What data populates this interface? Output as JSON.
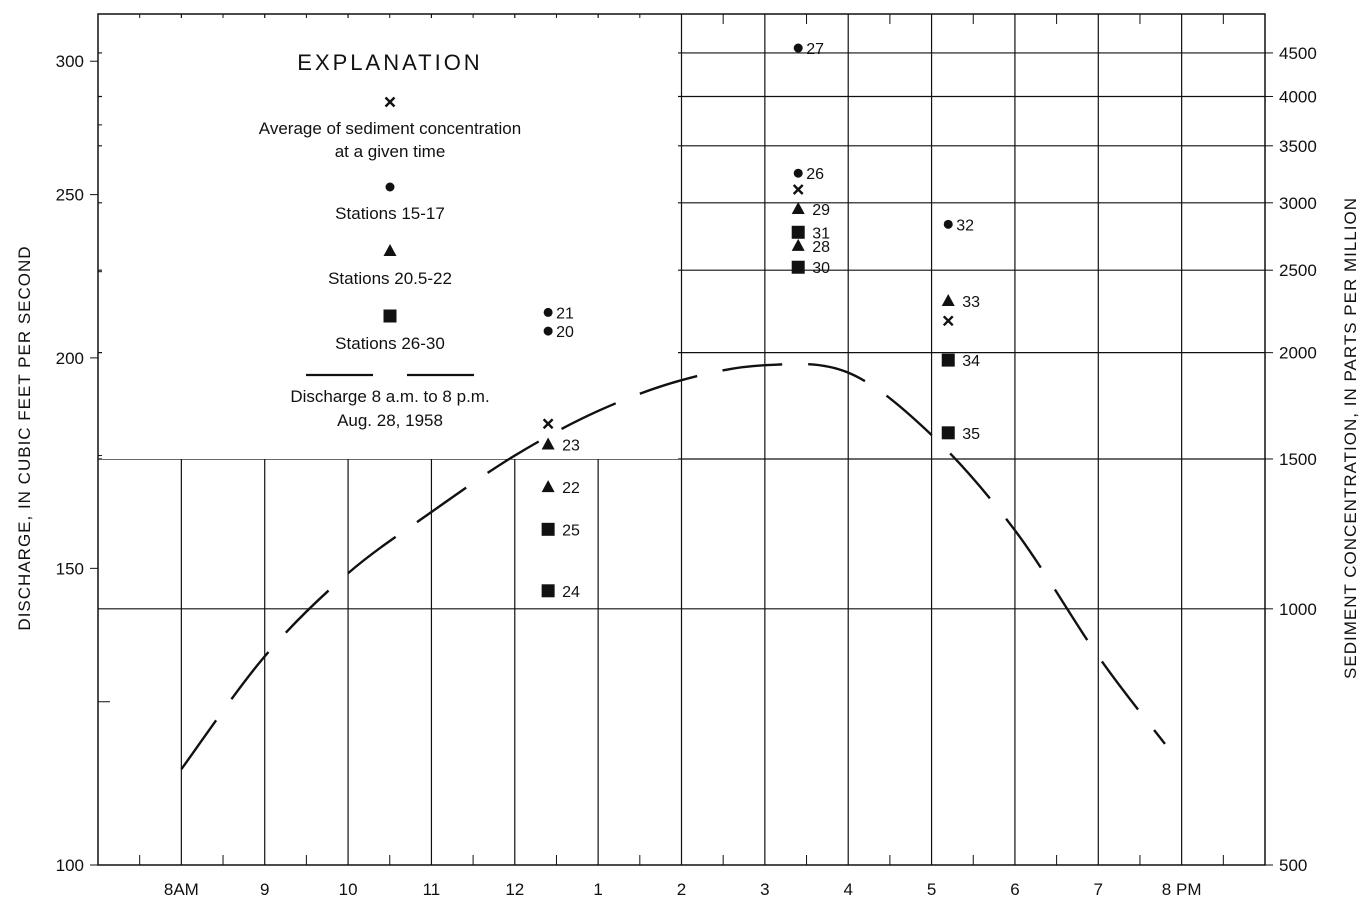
{
  "chart_data": {
    "type": "scatter",
    "title": "",
    "xlabel": "",
    "ylabel_left": "DISCHARGE, IN CUBIC FEET PER SECOND",
    "ylabel_right": "SEDIMENT CONCENTRATION, IN PARTS PER MILLION",
    "x_tick_labels": [
      "8AM",
      "9",
      "10",
      "11",
      "12",
      "1",
      "2",
      "3",
      "4",
      "5",
      "6",
      "7",
      "8 PM"
    ],
    "x_tick_hours": [
      8,
      9,
      10,
      11,
      12,
      13,
      14,
      15,
      16,
      17,
      18,
      19,
      20
    ],
    "xlim": [
      7,
      21
    ],
    "left_axis": {
      "scale": "log",
      "ylim": [
        100,
        320
      ],
      "tick_values": [
        100,
        150,
        200,
        250,
        300
      ],
      "tick_labels": [
        "100",
        "150",
        "200",
        "250",
        "300"
      ]
    },
    "right_axis": {
      "scale": "log",
      "ylim": [
        500,
        5000
      ],
      "tick_values": [
        500,
        1000,
        1500,
        2000,
        2500,
        3000,
        3500,
        4000,
        4500
      ],
      "tick_labels": [
        "500",
        "1000",
        "1500",
        "2000",
        "2500",
        "3000",
        "3500",
        "4000",
        "4500"
      ]
    },
    "grid": true,
    "legend": {
      "title": "EXPLANATION",
      "placement": "top-left",
      "entries": [
        {
          "marker": "x",
          "lines": [
            "Average of sediment concentration",
            "at a given time"
          ]
        },
        {
          "marker": "circle",
          "lines": [
            "Stations 15-17"
          ]
        },
        {
          "marker": "triangle",
          "lines": [
            "Stations 20.5-22"
          ]
        },
        {
          "marker": "square",
          "lines": [
            "Stations 26-30"
          ]
        },
        {
          "marker": "dashed-line",
          "lines": [
            "Discharge 8 a.m. to 8 p.m.",
            "Aug. 28, 1958"
          ]
        }
      ]
    },
    "discharge": {
      "x": [
        8,
        9,
        10,
        11,
        12,
        13,
        14,
        15,
        16,
        17,
        18,
        19,
        19.8
      ],
      "y": [
        114,
        133,
        149,
        162,
        175,
        186,
        194,
        198,
        196,
        180,
        158,
        133,
        118
      ]
    },
    "sediment_points": [
      {
        "marker": "circle",
        "x": 12.4,
        "y": 2230,
        "label": "21"
      },
      {
        "marker": "circle",
        "x": 12.4,
        "y": 2120,
        "label": "20"
      },
      {
        "marker": "x",
        "x": 12.4,
        "y": 1650,
        "label": ""
      },
      {
        "marker": "triangle",
        "x": 12.4,
        "y": 1560,
        "label": "23"
      },
      {
        "marker": "triangle",
        "x": 12.4,
        "y": 1390,
        "label": "22"
      },
      {
        "marker": "square",
        "x": 12.4,
        "y": 1240,
        "label": "25"
      },
      {
        "marker": "square",
        "x": 12.4,
        "y": 1050,
        "label": "24"
      },
      {
        "marker": "circle",
        "x": 15.4,
        "y": 4560,
        "label": "27"
      },
      {
        "marker": "circle",
        "x": 15.4,
        "y": 3250,
        "label": "26"
      },
      {
        "marker": "x",
        "x": 15.4,
        "y": 3110,
        "label": ""
      },
      {
        "marker": "triangle",
        "x": 15.4,
        "y": 2950,
        "label": "29"
      },
      {
        "marker": "square",
        "x": 15.4,
        "y": 2770,
        "label": "31"
      },
      {
        "marker": "triangle",
        "x": 15.4,
        "y": 2670,
        "label": "28"
      },
      {
        "marker": "square",
        "x": 15.4,
        "y": 2520,
        "label": "30"
      },
      {
        "marker": "circle",
        "x": 17.2,
        "y": 2830,
        "label": "32"
      },
      {
        "marker": "triangle",
        "x": 17.2,
        "y": 2300,
        "label": "33"
      },
      {
        "marker": "x",
        "x": 17.2,
        "y": 2180,
        "label": ""
      },
      {
        "marker": "square",
        "x": 17.2,
        "y": 1960,
        "label": "34"
      },
      {
        "marker": "square",
        "x": 17.2,
        "y": 1610,
        "label": "35"
      }
    ]
  }
}
